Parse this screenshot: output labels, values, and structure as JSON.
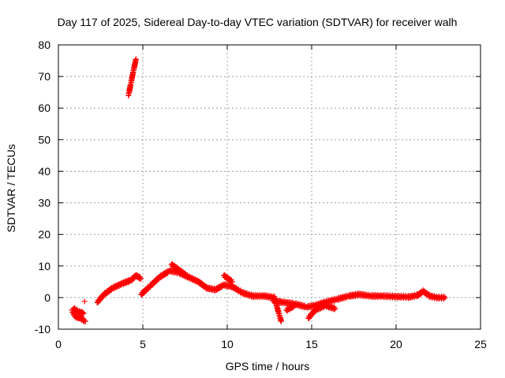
{
  "chart_data": {
    "type": "scatter",
    "title": "Day 117 of 2025, Sidereal Day-to-day VTEC variation (SDTVAR) for receiver walh",
    "xlabel": "GPS time / hours",
    "ylabel": "SDTVAR / TECUs",
    "xlim": [
      0,
      25
    ],
    "ylim": [
      -10,
      80
    ],
    "xticks": [
      0,
      5,
      10,
      15,
      20,
      25
    ],
    "yticks": [
      -10,
      0,
      10,
      20,
      30,
      40,
      50,
      60,
      70,
      80
    ],
    "grid": true,
    "marker": "+",
    "marker_color": "#ff0000",
    "series": [
      {
        "name": "SDTVAR",
        "segments": [
          [
            [
              0.8,
              -4
            ],
            [
              1.0,
              -6
            ],
            [
              1.3,
              -6.5
            ],
            [
              1.6,
              -7.5
            ]
          ],
          [
            [
              0.9,
              -3.5
            ],
            [
              1.2,
              -4.5
            ],
            [
              1.5,
              -5
            ]
          ],
          [
            [
              1.55,
              -1.2
            ]
          ],
          [
            [
              2.3,
              -1.5
            ],
            [
              2.7,
              1
            ],
            [
              3.2,
              3
            ],
            [
              3.8,
              4.5
            ],
            [
              4.3,
              5.5
            ],
            [
              4.6,
              7
            ],
            [
              4.9,
              6
            ]
          ],
          [
            [
              4.15,
              64
            ],
            [
              4.3,
              68
            ],
            [
              4.45,
              72
            ],
            [
              4.6,
              75.5
            ]
          ],
          [
            [
              4.9,
              1
            ],
            [
              5.4,
              3.5
            ],
            [
              6.0,
              6.5
            ],
            [
              6.6,
              8.5
            ],
            [
              7.1,
              8
            ],
            [
              7.7,
              6.5
            ],
            [
              8.3,
              5
            ],
            [
              8.8,
              3
            ],
            [
              9.3,
              2.5
            ],
            [
              9.8,
              4
            ],
            [
              10.3,
              3.5
            ],
            [
              10.9,
              1.5
            ],
            [
              11.5,
              0.5
            ],
            [
              12.2,
              0.5
            ],
            [
              12.8,
              0
            ],
            [
              13.0,
              -4
            ],
            [
              13.2,
              -7.5
            ]
          ],
          [
            [
              6.7,
              10.5
            ],
            [
              7.2,
              8.5
            ],
            [
              7.7,
              6.5
            ]
          ],
          [
            [
              9.8,
              7
            ],
            [
              10.3,
              5
            ]
          ],
          [
            [
              12.7,
              -1
            ],
            [
              13.3,
              -1.5
            ],
            [
              14.0,
              -2
            ],
            [
              14.7,
              -3
            ],
            [
              15.2,
              -2.5
            ],
            [
              15.8,
              -1.5
            ],
            [
              16.5,
              -0.5
            ],
            [
              17.2,
              0.5
            ],
            [
              17.8,
              1
            ],
            [
              18.5,
              0.5
            ],
            [
              19.2,
              0.5
            ],
            [
              20.0,
              0.3
            ],
            [
              20.8,
              0.2
            ],
            [
              21.3,
              0.8
            ],
            [
              21.6,
              2
            ],
            [
              22.0,
              0.5
            ],
            [
              22.4,
              0
            ],
            [
              22.9,
              0
            ]
          ],
          [
            [
              13.5,
              -4
            ],
            [
              14.0,
              -2.5
            ]
          ],
          [
            [
              14.8,
              -6.5
            ],
            [
              15.2,
              -4
            ],
            [
              15.8,
              -2.5
            ],
            [
              16.4,
              -3.5
            ]
          ]
        ]
      }
    ]
  }
}
